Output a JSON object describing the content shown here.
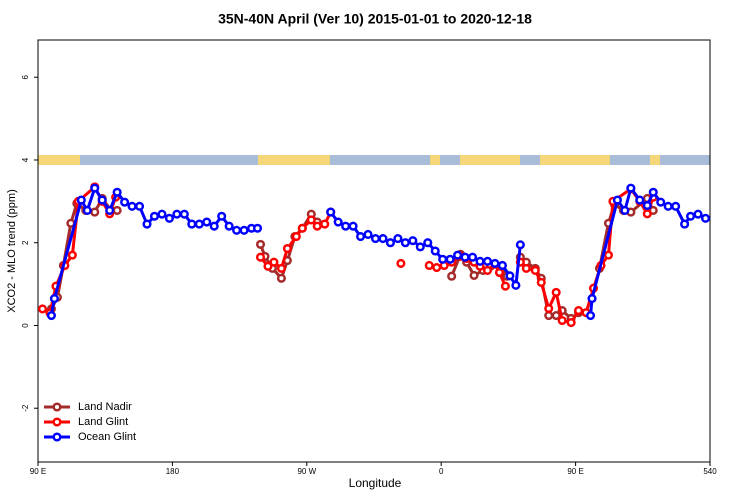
{
  "chart_data": {
    "type": "line",
    "title": "35N-40N April (Ver 10)   2015-01-01 to 2020-12-18",
    "x_label": "Longitude",
    "y_label": "XCO2 - MLO trend (ppm)",
    "xlim": [
      90,
      540
    ],
    "ylim": [
      -3.3,
      6.9
    ],
    "xticks": [
      {
        "value": 90,
        "label": "90 E"
      },
      180,
      {
        "value": 270,
        "label": "90 W"
      },
      {
        "value": 360,
        "label": "0"
      },
      {
        "value": 450,
        "label": "90 E"
      },
      540
    ],
    "yticks": [
      -2,
      0,
      2,
      4,
      6
    ],
    "legend": "bottom-left",
    "series": [
      {
        "name": "Land Nadir",
        "color": "#a52a2a",
        "x": [
          99,
          103,
          107,
          112,
          116,
          122,
          128,
          133,
          139,
          143,
          null,
          239,
          242,
          247,
          253,
          257,
          262,
          267,
          273,
          277,
          null,
          367,
          373,
          377,
          382,
          388,
          393,
          399,
          404,
          null,
          413,
          417,
          423,
          427,
          432,
          437,
          441,
          447,
          452,
          null,
          466,
          472,
          476,
          482,
          487,
          498,
          502
        ],
        "values": [
          0.4,
          0.68,
          1.45,
          2.47,
          2.95,
          2.78,
          2.74,
          3.07,
          2.78,
          2.78,
          null,
          1.96,
          1.67,
          1.38,
          1.14,
          1.57,
          2.15,
          2.35,
          2.69,
          2.5,
          null,
          1.19,
          1.72,
          1.53,
          1.21,
          1.33,
          1.43,
          1.43,
          1.19,
          null,
          1.65,
          1.53,
          1.38,
          1.14,
          0.24,
          0.24,
          0.36,
          0.17,
          0.31,
          null,
          1.38,
          2.47,
          2.93,
          2.78,
          2.74,
          3.07,
          2.78
        ]
      },
      {
        "name": "Land Glint",
        "color": "#ff0000",
        "x": [
          93,
          98,
          102,
          108,
          113,
          117,
          128,
          133,
          138,
          142,
          null,
          239,
          244,
          248,
          253,
          257,
          263,
          267,
          273,
          277,
          282,
          286,
          null,
          333,
          null,
          352,
          357,
          362,
          367,
          373,
          377,
          382,
          386,
          391,
          396,
          399,
          403,
          null,
          413,
          417,
          423,
          427,
          432,
          437,
          441,
          447,
          452,
          457,
          462,
          467,
          472,
          475,
          487,
          493,
          498,
          502
        ],
        "values": [
          0.4,
          0.3,
          0.95,
          1.45,
          1.7,
          3.0,
          3.35,
          3.0,
          2.7,
          3.1,
          null,
          1.65,
          1.43,
          1.53,
          1.38,
          1.86,
          2.15,
          2.35,
          2.55,
          2.4,
          2.45,
          2.74,
          null,
          1.5,
          null,
          1.45,
          1.4,
          1.45,
          1.53,
          1.67,
          1.62,
          1.53,
          1.43,
          1.33,
          1.48,
          1.28,
          0.95,
          null,
          1.53,
          1.38,
          1.33,
          1.04,
          0.41,
          0.8,
          0.12,
          0.07,
          0.36,
          0.31,
          0.9,
          1.45,
          1.7,
          3.0,
          3.3,
          3.0,
          2.7,
          3.1
        ]
      },
      {
        "name": "Ocean Glint",
        "color": "#0000ff",
        "x": [
          99,
          101,
          119,
          123,
          128,
          133,
          138,
          143,
          148,
          153,
          158,
          163,
          168,
          173,
          178,
          183,
          188,
          193,
          198,
          203,
          208,
          213,
          218,
          223,
          228,
          233,
          237,
          null,
          286,
          291,
          296,
          301,
          306,
          311,
          316,
          321,
          326,
          331,
          336,
          341,
          346,
          351,
          356,
          361,
          366,
          371,
          376,
          381,
          386,
          391,
          396,
          401,
          406,
          410,
          413,
          null,
          460,
          461,
          478,
          483,
          487,
          493,
          498,
          502,
          507,
          512,
          517,
          523,
          527,
          532,
          537
        ],
        "values": [
          0.24,
          0.65,
          3.03,
          2.78,
          3.32,
          3.03,
          2.78,
          3.22,
          2.98,
          2.88,
          2.88,
          2.45,
          2.64,
          2.69,
          2.59,
          2.69,
          2.69,
          2.45,
          2.45,
          2.5,
          2.4,
          2.64,
          2.4,
          2.3,
          2.3,
          2.35,
          2.35,
          null,
          2.74,
          2.5,
          2.4,
          2.4,
          2.15,
          2.2,
          2.1,
          2.1,
          2.0,
          2.1,
          2.0,
          2.05,
          1.9,
          2.0,
          1.8,
          1.6,
          1.6,
          1.7,
          1.65,
          1.65,
          1.55,
          1.55,
          1.5,
          1.45,
          1.2,
          0.97,
          1.95,
          null,
          0.24,
          0.65,
          3.03,
          2.78,
          3.32,
          3.03,
          2.9,
          3.22,
          2.98,
          2.88,
          2.88,
          2.45,
          2.64,
          2.69,
          2.59
        ]
      }
    ]
  }
}
